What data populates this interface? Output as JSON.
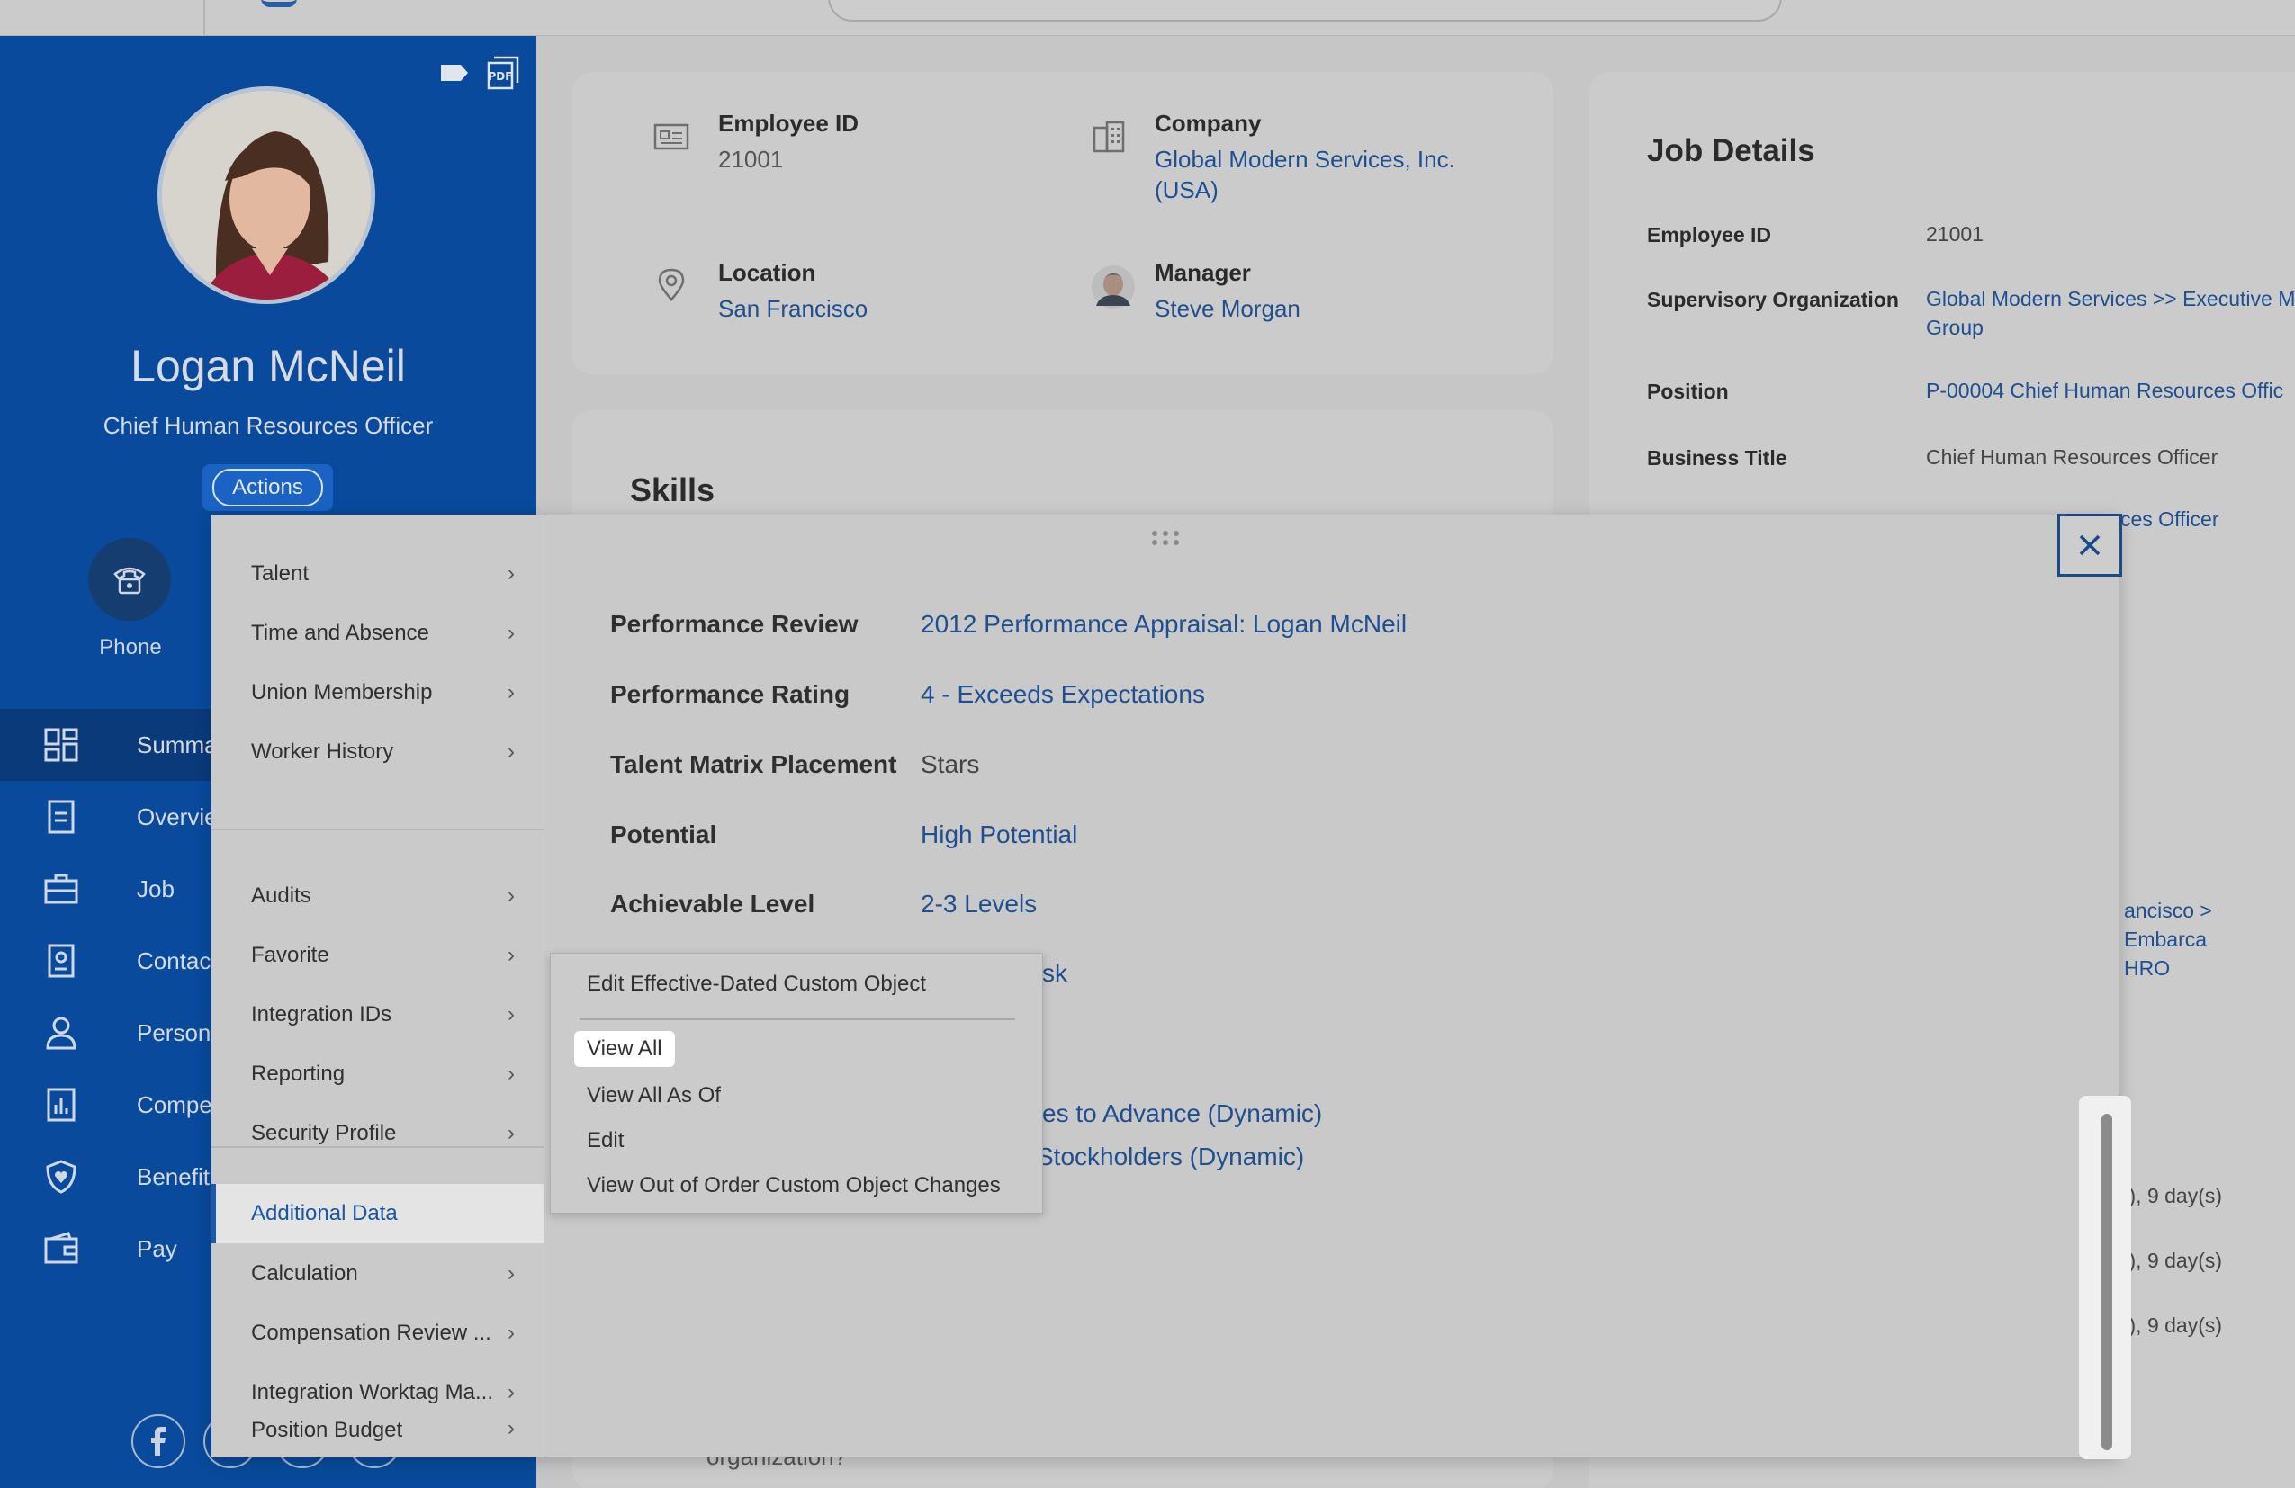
{
  "profile": {
    "name": "Logan McNeil",
    "title": "Chief Human Resources Officer",
    "actions_label": "Actions",
    "phone_label": "Phone"
  },
  "sidebar": {
    "nav": [
      {
        "label": "Summa",
        "icon": "grid-icon"
      },
      {
        "label": "Overvie",
        "icon": "document-icon"
      },
      {
        "label": "Job",
        "icon": "briefcase-icon"
      },
      {
        "label": "Contac",
        "icon": "contact-card-icon"
      },
      {
        "label": "Person",
        "icon": "person-icon"
      },
      {
        "label": "Compe",
        "icon": "chart-icon"
      },
      {
        "label": "Benefit",
        "icon": "shield-heart-icon"
      },
      {
        "label": "Pay",
        "icon": "wallet-icon"
      }
    ]
  },
  "summary_card": {
    "employee_id_label": "Employee ID",
    "employee_id_value": "21001",
    "company_label": "Company",
    "company_value_line1": "Global Modern Services, Inc.",
    "company_value_line2": "(USA)",
    "location_label": "Location",
    "location_value": "San Francisco",
    "manager_label": "Manager",
    "manager_value": "Steve Morgan"
  },
  "skills_card": {
    "title": "Skills",
    "bottom_fragment": "organization?"
  },
  "job_details": {
    "title": "Job Details",
    "rows": [
      {
        "label": "Employee ID",
        "value": "21001"
      },
      {
        "label": "Supervisory Organization",
        "value_line1": "Global Modern Services >> Executive M",
        "value_line2": "Group"
      },
      {
        "label": "Position",
        "value": "P-00004 Chief Human Resources Offic"
      },
      {
        "label": "Business Title",
        "value": "Chief Human Resources Officer"
      }
    ],
    "peek_1": "ces Officer",
    "peek_2_line1": "ancisco > Embarca",
    "peek_2_line2": "HRO",
    "peek_3": "s), 9 day(s)",
    "peek_4": "s), 9 day(s)",
    "peek_5": "s), 9 day(s)"
  },
  "menu": {
    "group1": [
      "Talent",
      "Time and Absence",
      "Union Membership",
      "Worker History"
    ],
    "group2": [
      "Audits",
      "Favorite",
      "Integration IDs",
      "Reporting",
      "Security Profile"
    ],
    "group3": [
      "Additional Data",
      "Calculation",
      "Compensation Review ...",
      "Integration Worktag Ma...",
      "Position Budget"
    ],
    "selected": "Additional Data"
  },
  "performance": {
    "rows": [
      {
        "label": "Performance Review",
        "value": "2012 Performance Appraisal: Logan McNeil",
        "link": true
      },
      {
        "label": "Performance Rating",
        "value": "4 - Exceeds Expectations",
        "link": true
      },
      {
        "label": "Talent Matrix Placement",
        "value": "Stars",
        "link": false
      },
      {
        "label": "Potential",
        "value": "High Potential",
        "link": true
      },
      {
        "label": "Achievable Level",
        "value": "2-3 Levels",
        "link": true
      }
    ],
    "peek_risk": "sk",
    "peek_advance": "es to Advance (Dynamic)",
    "peek_stockholders": "Stockholders (Dynamic)"
  },
  "submenu": {
    "items": [
      "Edit Effective-Dated Custom Object",
      "View All",
      "View All As Of",
      "Edit",
      "View Out of Order Custom Object Changes"
    ],
    "highlighted": "View All"
  },
  "colors": {
    "sidebar_bg": "#094a9c",
    "link": "#1f4f90",
    "accent": "#1b5aa8"
  }
}
